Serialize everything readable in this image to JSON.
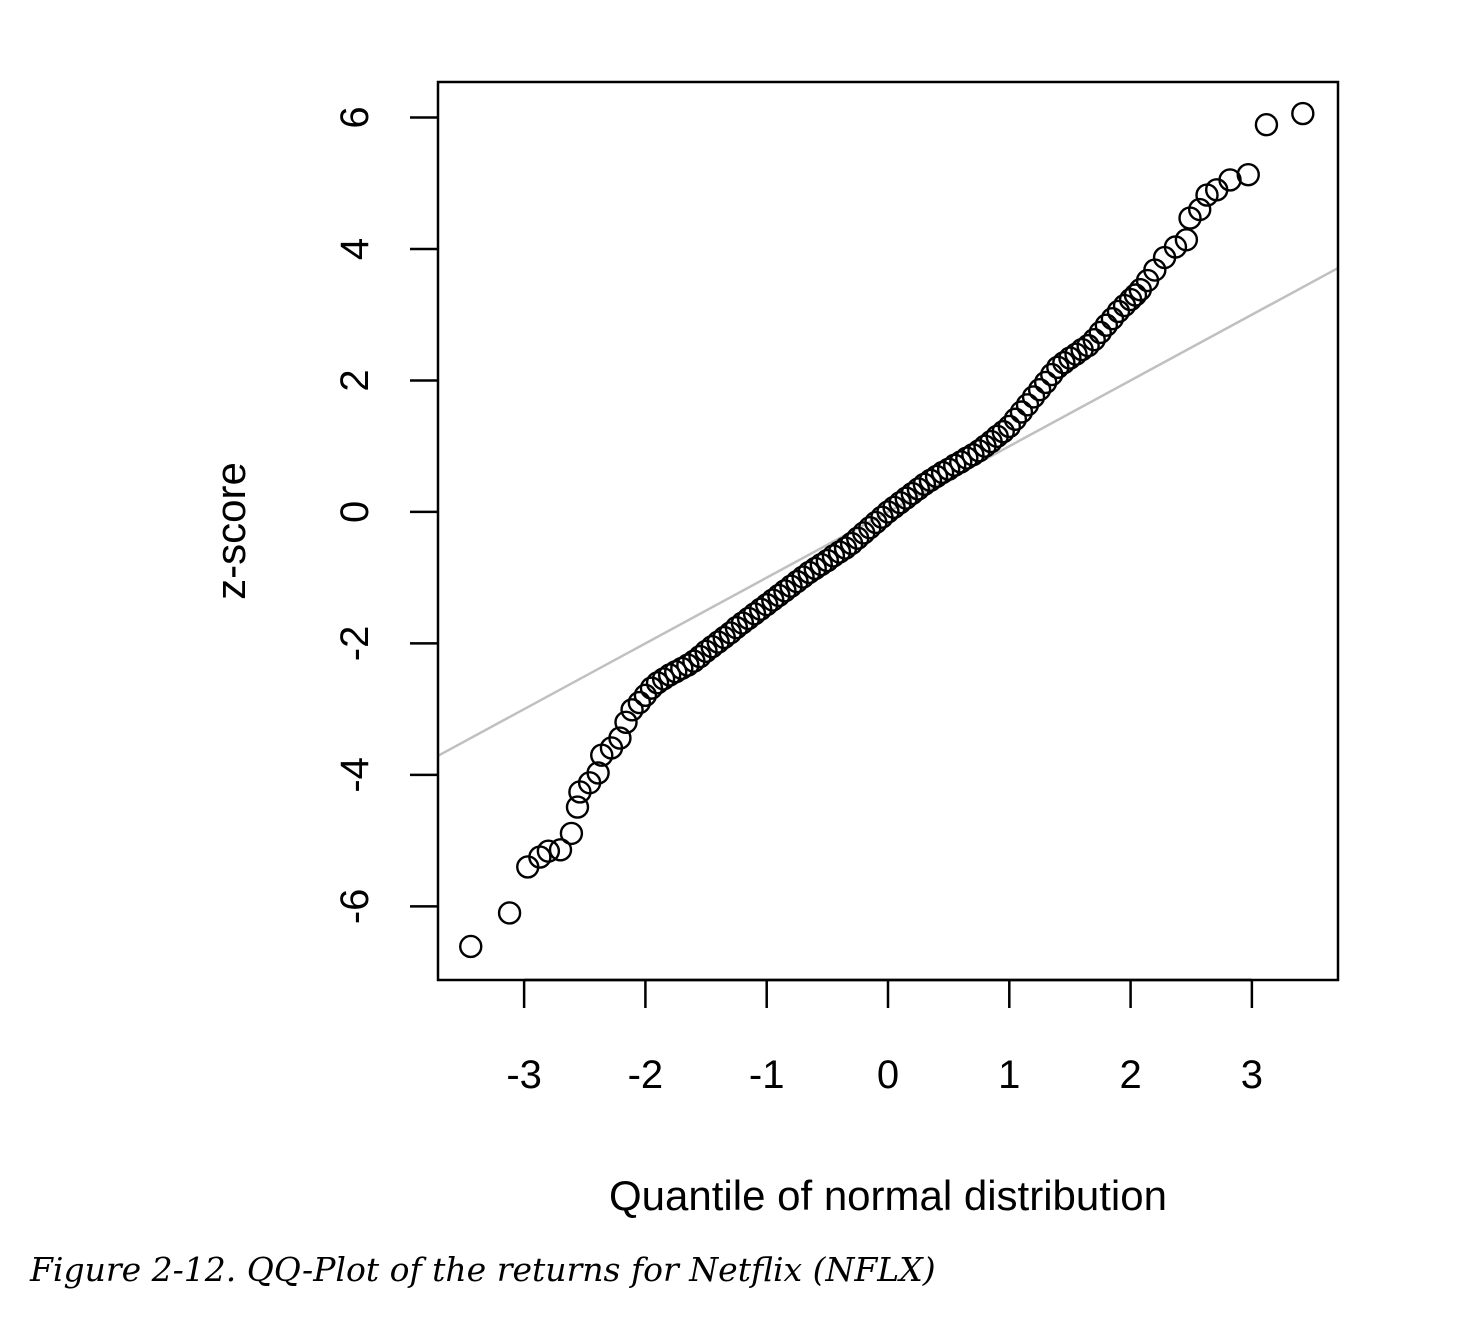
{
  "chart_data": {
    "type": "scatter",
    "title": "",
    "xlabel": "Quantile of normal distribution",
    "ylabel": "z-score",
    "xlim": [
      -3.71,
      3.71
    ],
    "ylim": [
      -7.12,
      6.54
    ],
    "xticks": [
      -3,
      -2,
      -1,
      0,
      1,
      2,
      3
    ],
    "yticks": [
      -6,
      -4,
      -2,
      0,
      2,
      4,
      6
    ],
    "grid": false,
    "reference_line": {
      "slope": 1.0,
      "intercept": 0.0,
      "color": "#c0c0c0"
    },
    "points": [
      [
        -3.44,
        -6.61
      ],
      [
        -3.12,
        -6.1
      ],
      [
        -2.97,
        -5.4
      ],
      [
        -2.87,
        -5.25
      ],
      [
        -2.8,
        -5.16
      ],
      [
        -2.7,
        -5.14
      ],
      [
        -2.61,
        -4.89
      ],
      [
        -2.56,
        -4.49
      ],
      [
        -2.54,
        -4.26
      ],
      [
        -2.46,
        -4.12
      ],
      [
        -2.39,
        -3.97
      ],
      [
        -2.36,
        -3.7
      ],
      [
        -2.28,
        -3.59
      ],
      [
        -2.21,
        -3.44
      ],
      [
        -2.16,
        -3.2
      ],
      [
        -2.11,
        -3.01
      ],
      [
        -2.05,
        -2.9
      ],
      [
        -2.0,
        -2.79
      ],
      [
        -1.95,
        -2.68
      ],
      [
        -1.9,
        -2.6
      ],
      [
        -1.85,
        -2.54
      ],
      [
        -1.8,
        -2.48
      ],
      [
        -1.75,
        -2.43
      ],
      [
        -1.7,
        -2.38
      ],
      [
        -1.65,
        -2.33
      ],
      [
        -1.6,
        -2.27
      ],
      [
        -1.55,
        -2.2
      ],
      [
        -1.5,
        -2.12
      ],
      [
        -1.45,
        -2.05
      ],
      [
        -1.4,
        -1.98
      ],
      [
        -1.35,
        -1.91
      ],
      [
        -1.3,
        -1.84
      ],
      [
        -1.25,
        -1.76
      ],
      [
        -1.2,
        -1.69
      ],
      [
        -1.15,
        -1.62
      ],
      [
        -1.1,
        -1.55
      ],
      [
        -1.05,
        -1.48
      ],
      [
        -1.0,
        -1.41
      ],
      [
        -0.95,
        -1.34
      ],
      [
        -0.9,
        -1.27
      ],
      [
        -0.85,
        -1.2
      ],
      [
        -0.8,
        -1.13
      ],
      [
        -0.75,
        -1.06
      ],
      [
        -0.7,
        -0.99
      ],
      [
        -0.65,
        -0.92
      ],
      [
        -0.6,
        -0.86
      ],
      [
        -0.55,
        -0.8
      ],
      [
        -0.5,
        -0.74
      ],
      [
        -0.45,
        -0.67
      ],
      [
        -0.4,
        -0.61
      ],
      [
        -0.35,
        -0.55
      ],
      [
        -0.3,
        -0.48
      ],
      [
        -0.25,
        -0.4
      ],
      [
        -0.2,
        -0.32
      ],
      [
        -0.15,
        -0.24
      ],
      [
        -0.1,
        -0.16
      ],
      [
        -0.05,
        -0.08
      ],
      [
        0,
        0
      ],
      [
        0.05,
        0.07
      ],
      [
        0.1,
        0.14
      ],
      [
        0.15,
        0.21
      ],
      [
        0.2,
        0.28
      ],
      [
        0.25,
        0.35
      ],
      [
        0.3,
        0.42
      ],
      [
        0.35,
        0.48
      ],
      [
        0.4,
        0.54
      ],
      [
        0.45,
        0.6
      ],
      [
        0.5,
        0.65
      ],
      [
        0.55,
        0.71
      ],
      [
        0.6,
        0.76
      ],
      [
        0.65,
        0.82
      ],
      [
        0.7,
        0.87
      ],
      [
        0.75,
        0.93
      ],
      [
        0.8,
        1.0
      ],
      [
        0.85,
        1.07
      ],
      [
        0.9,
        1.15
      ],
      [
        0.95,
        1.22
      ],
      [
        1.0,
        1.3
      ],
      [
        1.05,
        1.41
      ],
      [
        1.1,
        1.52
      ],
      [
        1.15,
        1.63
      ],
      [
        1.2,
        1.75
      ],
      [
        1.25,
        1.86
      ],
      [
        1.3,
        1.97
      ],
      [
        1.35,
        2.09
      ],
      [
        1.4,
        2.2
      ],
      [
        1.45,
        2.27
      ],
      [
        1.5,
        2.34
      ],
      [
        1.55,
        2.4
      ],
      [
        1.6,
        2.47
      ],
      [
        1.65,
        2.53
      ],
      [
        1.7,
        2.62
      ],
      [
        1.75,
        2.73
      ],
      [
        1.8,
        2.84
      ],
      [
        1.85,
        2.94
      ],
      [
        1.9,
        3.05
      ],
      [
        1.95,
        3.14
      ],
      [
        2.0,
        3.23
      ],
      [
        2.04,
        3.3
      ],
      [
        2.08,
        3.38
      ],
      [
        2.14,
        3.52
      ],
      [
        2.2,
        3.68
      ],
      [
        2.28,
        3.87
      ],
      [
        2.37,
        4.03
      ],
      [
        2.46,
        4.14
      ],
      [
        2.49,
        4.47
      ],
      [
        2.57,
        4.6
      ],
      [
        2.63,
        4.82
      ],
      [
        2.71,
        4.9
      ],
      [
        2.82,
        5.05
      ],
      [
        2.97,
        5.13
      ],
      [
        3.12,
        5.89
      ],
      [
        3.42,
        6.06
      ]
    ]
  },
  "caption": "Figure 2-12. QQ-Plot of the returns for Netflix (NFLX)"
}
